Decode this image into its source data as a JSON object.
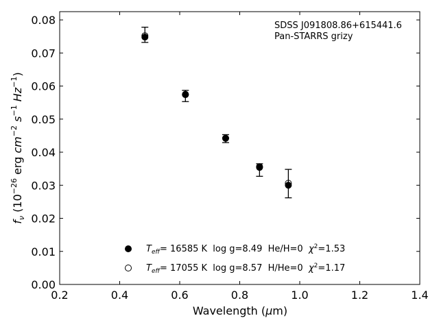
{
  "chart_data": {
    "type": "scatter",
    "xlabel": "Wavelength (μm)",
    "ylabel": "f_ν (10^-26 erg cm^-2 s^-1 Hz^-1)",
    "xlim": [
      0.2,
      1.4
    ],
    "ylim": [
      0.0,
      0.0825
    ],
    "xticks": [
      0.2,
      0.4,
      0.6,
      0.8,
      1.0,
      1.2,
      1.4
    ],
    "xtick_labels": [
      "0.2",
      "0.4",
      "0.6",
      "0.8",
      "1.0",
      "1.2",
      "1.4"
    ],
    "yticks": [
      0.0,
      0.01,
      0.02,
      0.03,
      0.04,
      0.05,
      0.06,
      0.07,
      0.08
    ],
    "ytick_labels": [
      "0.00",
      "0.01",
      "0.02",
      "0.03",
      "0.04",
      "0.05",
      "0.06",
      "0.07",
      "0.08"
    ],
    "grid": false,
    "annotation": {
      "line1": "SDSS J091808.86+615441.6",
      "line2": "Pan-STARRS grizy",
      "placement": "top-right"
    },
    "observed": {
      "points": [
        {
          "x": 0.484,
          "y": 0.0755,
          "err_low": 0.0732,
          "err_high": 0.0778
        },
        {
          "x": 0.619,
          "y": 0.057,
          "err_low": 0.0553,
          "err_high": 0.0587
        },
        {
          "x": 0.753,
          "y": 0.0441,
          "err_low": 0.0429,
          "err_high": 0.0453
        },
        {
          "x": 0.866,
          "y": 0.0346,
          "err_low": 0.0327,
          "err_high": 0.0365
        },
        {
          "x": 0.962,
          "y": 0.0305,
          "err_low": 0.0262,
          "err_high": 0.0348
        }
      ]
    },
    "series": [
      {
        "marker": "filled-circle",
        "label": {
          "T": "T",
          "sub": "eff",
          "rest": "= 16585 K  log g=8.49  He/H=0  ",
          "chi": "χ",
          "sup": "2",
          "val": "=1.53"
        },
        "x": [
          0.484,
          0.619,
          0.753,
          0.866,
          0.962
        ],
        "y": [
          0.0748,
          0.0575,
          0.0442,
          0.0354,
          0.03
        ]
      },
      {
        "marker": "open-circle",
        "label": {
          "T": "T",
          "sub": "eff",
          "rest": "= 17055 K  log g=8.57  H/He=0  ",
          "chi": "χ",
          "sup": "2",
          "val": "=1.17"
        },
        "x": [
          0.484,
          0.619,
          0.753,
          0.866,
          0.962
        ],
        "y": [
          0.0752,
          0.0574,
          0.0442,
          0.0356,
          0.0306
        ]
      }
    ],
    "legend_placement": "lower-center",
    "colors": {
      "marker": "#000000",
      "background": "#ffffff"
    }
  }
}
